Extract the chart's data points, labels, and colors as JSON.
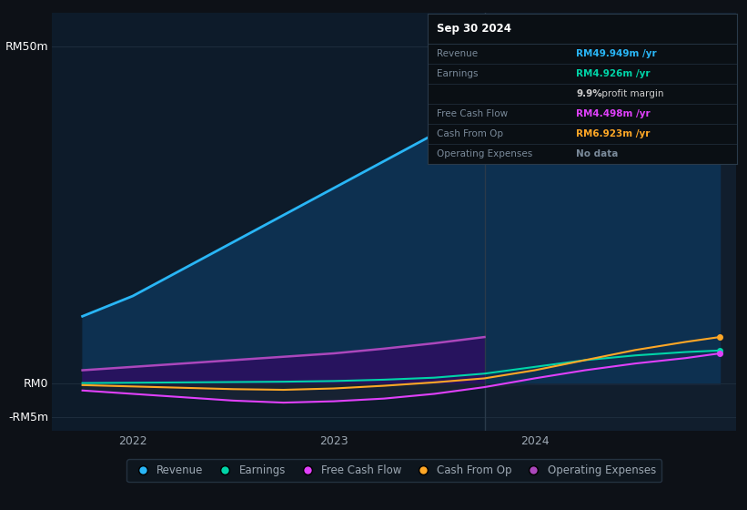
{
  "background_color": "#0d1117",
  "chart_bg_color": "#0d1b2a",
  "chart_bg_right": "#152030",
  "grid_color": "#1e2d3d",
  "text_color": "#9da8b3",
  "y_labels": [
    "RM50m",
    "RM0",
    "-RM5m"
  ],
  "y_ticks": [
    50,
    0,
    -5
  ],
  "ylim": [
    -7,
    55
  ],
  "x_ticks": [
    2022,
    2023,
    2024
  ],
  "xlim": [
    2021.6,
    2025.0
  ],
  "revenue_color": "#29b6f6",
  "revenue_fill": "#0d3050",
  "earnings_color": "#00d4a8",
  "free_cash_flow_color": "#e040fb",
  "cash_from_op_color": "#ffa726",
  "op_expenses_color": "#ab47bc",
  "op_expenses_fill": "#2a1060",
  "x": [
    2021.75,
    2022.0,
    2022.25,
    2022.5,
    2022.75,
    2023.0,
    2023.25,
    2023.5,
    2023.75,
    2024.0,
    2024.25,
    2024.5,
    2024.75,
    2024.92
  ],
  "revenue": [
    10,
    13,
    17,
    21,
    25,
    29,
    33,
    37,
    40,
    43,
    46,
    48,
    49.5,
    50
  ],
  "earnings": [
    0.1,
    0.15,
    0.2,
    0.25,
    0.3,
    0.4,
    0.6,
    0.9,
    1.5,
    2.5,
    3.5,
    4.2,
    4.7,
    4.926
  ],
  "free_cash_flow": [
    -1.0,
    -1.5,
    -2.0,
    -2.5,
    -2.8,
    -2.6,
    -2.2,
    -1.5,
    -0.5,
    0.8,
    2.0,
    3.0,
    3.8,
    4.498
  ],
  "cash_from_op": [
    -0.2,
    -0.4,
    -0.6,
    -0.8,
    -0.9,
    -0.7,
    -0.3,
    0.2,
    0.8,
    2.0,
    3.5,
    5.0,
    6.2,
    6.923
  ],
  "op_expenses": [
    2.0,
    2.5,
    3.0,
    3.5,
    4.0,
    4.5,
    5.2,
    6.0,
    6.923,
    null,
    null,
    null,
    null,
    null
  ],
  "vline_x": 2023.75,
  "tooltip": {
    "title": "Sep 30 2024",
    "bg": "#0a0f14",
    "border": "#2a3a4a",
    "rows": [
      {
        "label": "Revenue",
        "value": "RM49.949m /yr",
        "value_color": "#29b6f6"
      },
      {
        "label": "Earnings",
        "value": "RM4.926m /yr",
        "value_color": "#00d4a8"
      },
      {
        "label": "",
        "value": "9.9% profit margin",
        "value_color": "#cccccc",
        "bold_prefix": "9.9%"
      },
      {
        "label": "Free Cash Flow",
        "value": "RM4.498m /yr",
        "value_color": "#e040fb"
      },
      {
        "label": "Cash From Op",
        "value": "RM6.923m /yr",
        "value_color": "#ffa726"
      },
      {
        "label": "Operating Expenses",
        "value": "No data",
        "value_color": "#7a8a9a"
      }
    ]
  },
  "legend": [
    {
      "label": "Revenue",
      "color": "#29b6f6"
    },
    {
      "label": "Earnings",
      "color": "#00d4a8"
    },
    {
      "label": "Free Cash Flow",
      "color": "#e040fb"
    },
    {
      "label": "Cash From Op",
      "color": "#ffa726"
    },
    {
      "label": "Operating Expenses",
      "color": "#ab47bc"
    }
  ]
}
